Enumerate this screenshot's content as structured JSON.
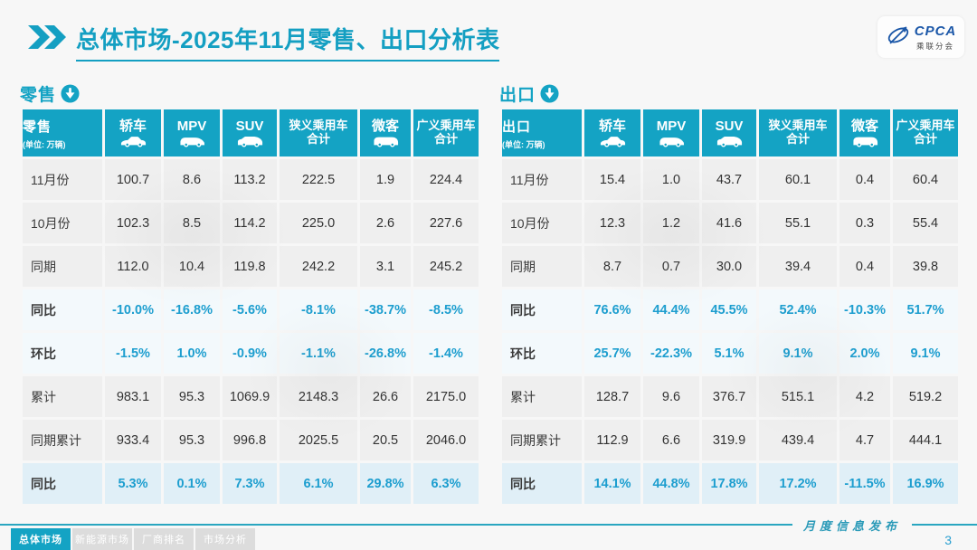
{
  "header": {
    "title": "总体市场-2025年11月零售、出口分析表"
  },
  "logo": {
    "name": "CPCA",
    "subtitle": "乘联分会",
    "icon": "cpca-swoosh-icon"
  },
  "columns": [
    {
      "key": "sedan",
      "label": "轿车",
      "icon": "sedan-icon"
    },
    {
      "key": "mpv",
      "label": "MPV",
      "icon": "mpv-icon"
    },
    {
      "key": "suv",
      "label": "SUV",
      "icon": "suv-icon"
    },
    {
      "key": "narrow-pv-total",
      "label": "狭义乘用车合计",
      "icon": ""
    },
    {
      "key": "minivan",
      "label": "微客",
      "icon": "van-icon"
    },
    {
      "key": "broad-pv-total",
      "label": "广义乘用车合计",
      "icon": ""
    }
  ],
  "tables": [
    {
      "id": "retail",
      "title": "零售",
      "unit": "(单位: 万辆)",
      "section_icon": "circle-down-arrow-icon",
      "rows": [
        {
          "label": "11月份",
          "type": "value",
          "values": [
            "100.7",
            "8.6",
            "113.2",
            "222.5",
            "1.9",
            "224.4"
          ]
        },
        {
          "label": "10月份",
          "type": "value",
          "values": [
            "102.3",
            "8.5",
            "114.2",
            "225.0",
            "2.6",
            "227.6"
          ]
        },
        {
          "label": "同期",
          "type": "value",
          "values": [
            "112.0",
            "10.4",
            "119.8",
            "242.2",
            "3.1",
            "245.2"
          ]
        },
        {
          "label": "同比",
          "type": "pct",
          "values": [
            "-10.0%",
            "-16.8%",
            "-5.6%",
            "-8.1%",
            "-38.7%",
            "-8.5%"
          ]
        },
        {
          "label": "环比",
          "type": "pct",
          "values": [
            "-1.5%",
            "1.0%",
            "-0.9%",
            "-1.1%",
            "-26.8%",
            "-1.4%"
          ]
        },
        {
          "label": "累计",
          "type": "value",
          "values": [
            "983.1",
            "95.3",
            "1069.9",
            "2148.3",
            "26.6",
            "2175.0"
          ]
        },
        {
          "label": "同期累计",
          "type": "value",
          "values": [
            "933.4",
            "95.3",
            "996.8",
            "2025.5",
            "20.5",
            "2046.0"
          ]
        },
        {
          "label": "同比",
          "type": "pct-strong",
          "values": [
            "5.3%",
            "0.1%",
            "7.3%",
            "6.1%",
            "29.8%",
            "6.3%"
          ]
        }
      ]
    },
    {
      "id": "export",
      "title": "出口",
      "unit": "(单位: 万辆)",
      "section_icon": "circle-down-arrow-icon",
      "rows": [
        {
          "label": "11月份",
          "type": "value",
          "values": [
            "15.4",
            "1.0",
            "43.7",
            "60.1",
            "0.4",
            "60.4"
          ]
        },
        {
          "label": "10月份",
          "type": "value",
          "values": [
            "12.3",
            "1.2",
            "41.6",
            "55.1",
            "0.3",
            "55.4"
          ]
        },
        {
          "label": "同期",
          "type": "value",
          "values": [
            "8.7",
            "0.7",
            "30.0",
            "39.4",
            "0.4",
            "39.8"
          ]
        },
        {
          "label": "同比",
          "type": "pct",
          "values": [
            "76.6%",
            "44.4%",
            "45.5%",
            "52.4%",
            "-10.3%",
            "51.7%"
          ]
        },
        {
          "label": "环比",
          "type": "pct",
          "values": [
            "25.7%",
            "-22.3%",
            "5.1%",
            "9.1%",
            "2.0%",
            "9.1%"
          ]
        },
        {
          "label": "累计",
          "type": "value",
          "values": [
            "128.7",
            "9.6",
            "376.7",
            "515.1",
            "4.2",
            "519.2"
          ]
        },
        {
          "label": "同期累计",
          "type": "value",
          "values": [
            "112.9",
            "6.6",
            "319.9",
            "439.4",
            "4.7",
            "444.1"
          ]
        },
        {
          "label": "同比",
          "type": "pct-strong",
          "values": [
            "14.1%",
            "44.8%",
            "17.8%",
            "17.2%",
            "-11.5%",
            "16.9%"
          ]
        }
      ]
    }
  ],
  "footer": {
    "tabs": [
      {
        "label": "总体市场",
        "active": true
      },
      {
        "label": "新能源市场",
        "active": false
      },
      {
        "label": "厂商排名",
        "active": false
      },
      {
        "label": "市场分析",
        "active": false
      }
    ],
    "release_label": "月度信息发布",
    "page_number": "3"
  },
  "colors": {
    "accent": "#14a3c4",
    "title": "#149fc2",
    "pct_text": "#1d9ecf",
    "row_gray": "#efefef",
    "row_pct": "#f3f9fc",
    "row_pct_strong": "#e0eff7",
    "logo_blue": "#1b57a8"
  }
}
